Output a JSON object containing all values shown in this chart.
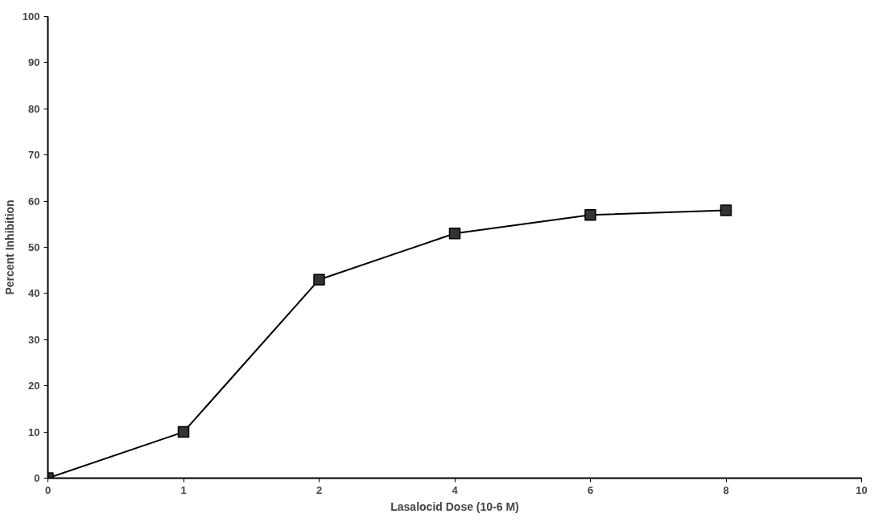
{
  "chart_data": {
    "type": "line",
    "xlabel": "Lasalocid Dose (10-6 M)",
    "ylabel": "Percent Inhibition",
    "categories": [
      "0",
      "1",
      "2",
      "4",
      "6",
      "8",
      "10"
    ],
    "series": [
      {
        "color": "#000000",
        "values": [
          0,
          10,
          43,
          53,
          57,
          58,
          null
        ]
      }
    ],
    "ylim": [
      0,
      100
    ],
    "yticks": [
      0,
      10,
      20,
      30,
      40,
      50,
      60,
      70,
      80,
      90,
      100
    ],
    "marker": "square",
    "line_style": "solid",
    "grid": false
  }
}
